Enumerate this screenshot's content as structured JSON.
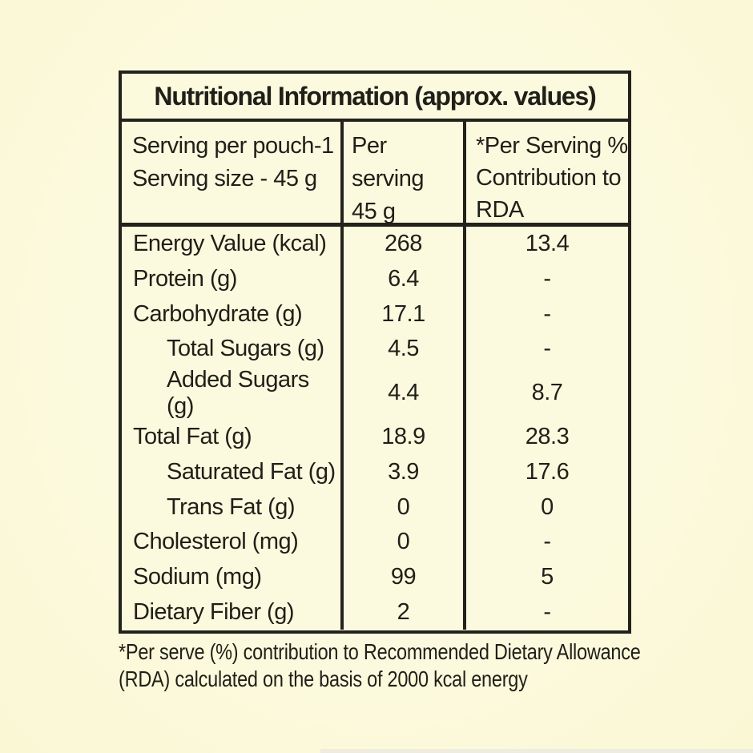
{
  "page": {
    "background_color": "#fcfade",
    "border_color": "#23231c",
    "text_color": "#201f18"
  },
  "table": {
    "title": "Nutritional Information (approx. values)",
    "header": {
      "col1_line1": "Serving per pouch-1",
      "col1_line2": "Serving size - 45 g",
      "col2_line1": "Per serving",
      "col2_line2": "45 g",
      "col3_line1": "*Per Serving %",
      "col3_line2": "Contribution to",
      "col3_line3": "RDA"
    },
    "rows": [
      {
        "label": "Energy Value (kcal)",
        "per_serving": "268",
        "rda": "13.4"
      },
      {
        "label": "Protein (g)",
        "per_serving": "6.4",
        "rda": "-"
      },
      {
        "label": "Carbohydrate (g)",
        "per_serving": "17.1",
        "rda": "-"
      },
      {
        "label": "Total Sugars (g)",
        "per_serving": "4.5",
        "rda": "-"
      },
      {
        "label": "Added Sugars (g)",
        "per_serving": "4.4",
        "rda": "8.7"
      },
      {
        "label": "Total Fat (g)",
        "per_serving": "18.9",
        "rda": "28.3"
      },
      {
        "label": "Saturated Fat (g)",
        "per_serving": "3.9",
        "rda": "17.6"
      },
      {
        "label": "Trans Fat (g)",
        "per_serving": "0",
        "rda": "0"
      },
      {
        "label": "Cholesterol (mg)",
        "per_serving": "0",
        "rda": "-"
      },
      {
        "label": "Sodium (mg)",
        "per_serving": "99",
        "rda": "5"
      },
      {
        "label": "Dietary Fiber (g)",
        "per_serving": "2",
        "rda": "-"
      }
    ],
    "footnote_line1": "*Per serve (%) contribution to Recommended Dietary Allowance",
    "footnote_line2": "(RDA) calculated on the basis of 2000 kcal energy"
  }
}
